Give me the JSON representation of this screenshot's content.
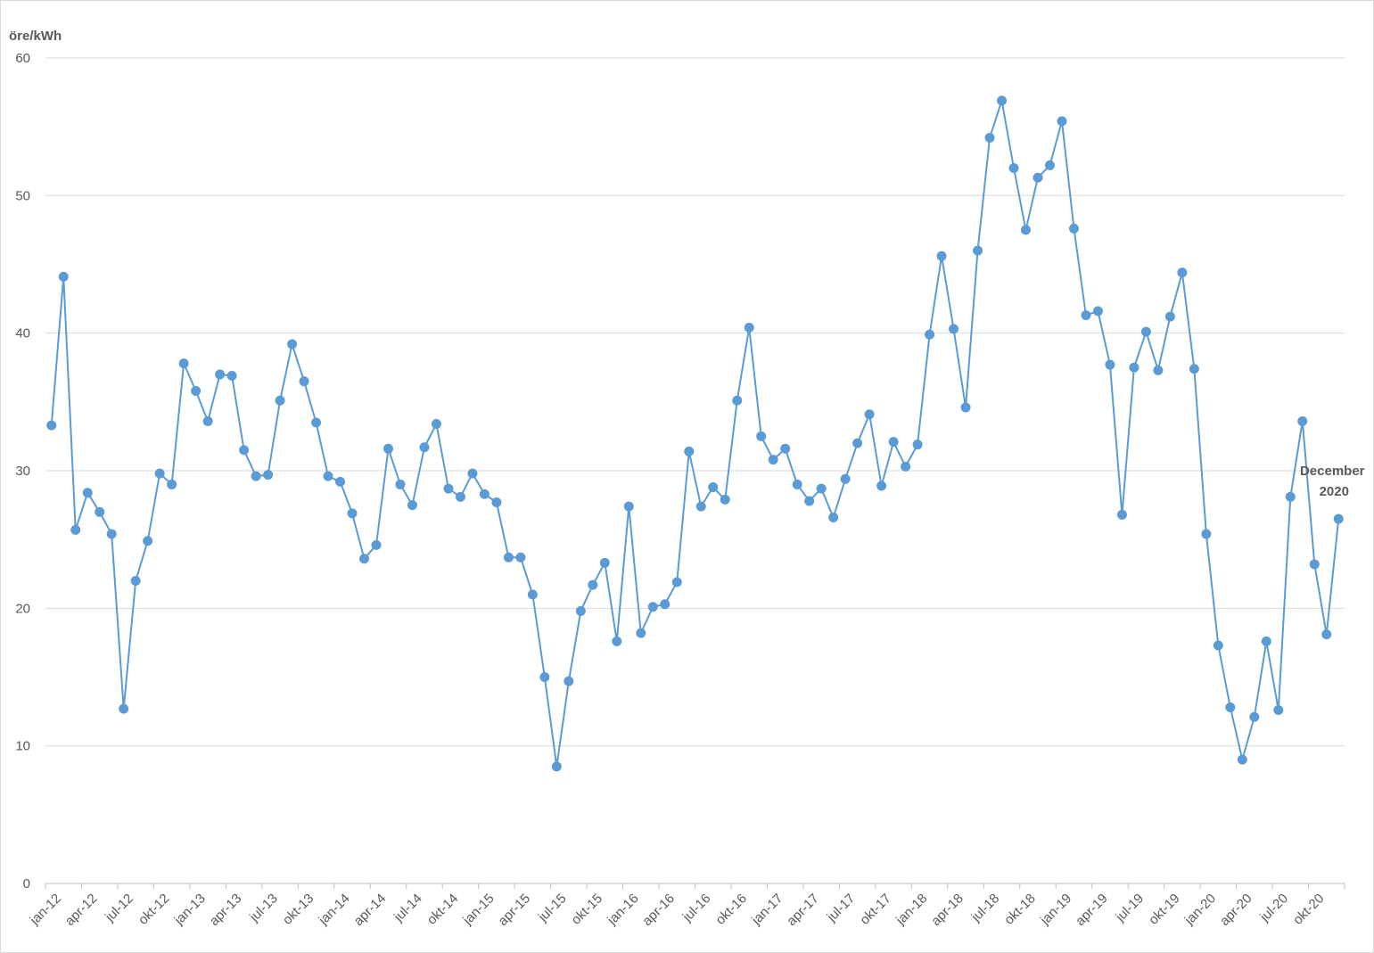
{
  "chart_data": {
    "type": "line",
    "ylabel": "öre/kWh",
    "ylim": [
      0,
      60
    ],
    "yticks": [
      0,
      10,
      20,
      30,
      40,
      50,
      60
    ],
    "grid": true,
    "legend": "none",
    "x_tick_labels": [
      "jan-12",
      "apr-12",
      "jul-12",
      "okt-12",
      "jan-13",
      "apr-13",
      "jul-13",
      "okt-13",
      "jan-14",
      "apr-14",
      "jul-14",
      "okt-14",
      "jan-15",
      "apr-15",
      "jul-15",
      "okt-15",
      "jan-16",
      "apr-16",
      "jul-16",
      "okt-16",
      "jan-17",
      "apr-17",
      "jul-17",
      "okt-17",
      "jan-18",
      "apr-18",
      "jul-18",
      "okt-18",
      "jan-19",
      "apr-19",
      "jul-19",
      "okt-19",
      "jan-20",
      "apr-20",
      "jul-20",
      "okt-20"
    ],
    "annotation": {
      "line1": "December",
      "line2": "2020",
      "point_index": 107
    },
    "color": "#5b9bd5",
    "series": [
      {
        "values": [
          33.3,
          44.1,
          25.7,
          28.4,
          27.0,
          25.4,
          12.7,
          22.0,
          24.9,
          29.8,
          29.0,
          37.8,
          35.8,
          33.6,
          37.0,
          36.9,
          31.5,
          29.6,
          29.7,
          35.1,
          39.2,
          36.5,
          33.5,
          29.6,
          29.2,
          26.9,
          23.6,
          24.6,
          31.6,
          29.0,
          27.5,
          31.7,
          33.4,
          28.7,
          28.1,
          29.8,
          28.3,
          27.7,
          23.7,
          23.7,
          21.0,
          15.0,
          8.5,
          14.7,
          19.8,
          21.7,
          23.3,
          17.6,
          27.4,
          18.2,
          20.1,
          20.3,
          21.9,
          31.4,
          27.4,
          28.8,
          27.9,
          35.1,
          40.4,
          32.5,
          30.8,
          31.6,
          29.0,
          27.8,
          28.7,
          26.6,
          29.4,
          32.0,
          34.1,
          28.9,
          32.1,
          30.3,
          31.9,
          39.9,
          45.6,
          40.3,
          34.6,
          46.0,
          54.2,
          56.9,
          52.0,
          47.5,
          51.3,
          52.2,
          55.4,
          47.6,
          41.3,
          41.6,
          37.7,
          26.8,
          37.5,
          40.1,
          37.3,
          41.2,
          44.4,
          37.4,
          25.4,
          17.3,
          12.8,
          9.0,
          12.1,
          17.6,
          12.6,
          28.1,
          33.6,
          23.2,
          18.1,
          26.5
        ]
      }
    ]
  }
}
